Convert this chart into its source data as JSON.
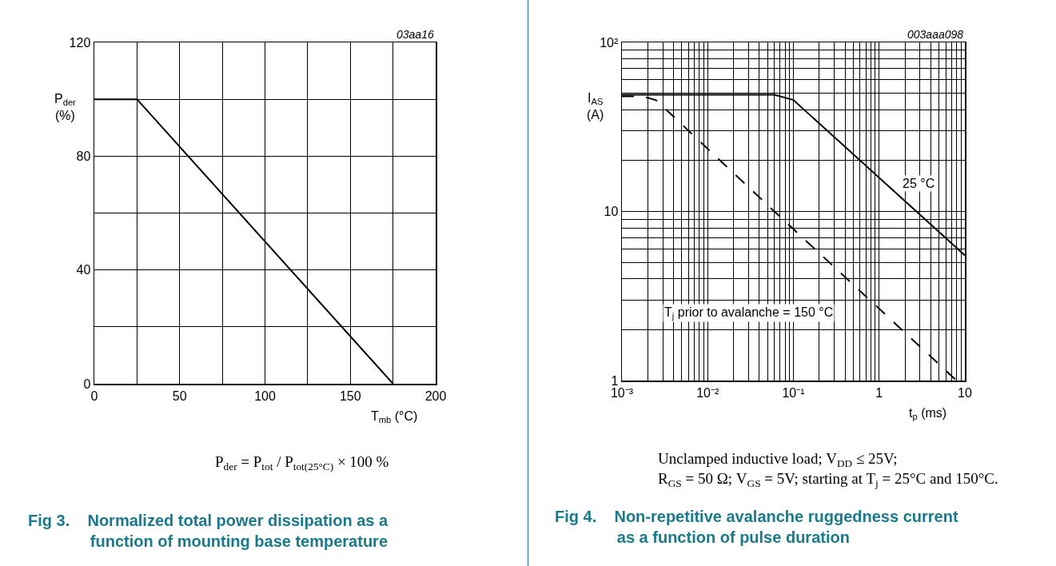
{
  "chart_data": [
    {
      "type": "line",
      "title": "Fig 3.    Normalized total power dissipation as a\n              function of mounting base temperature",
      "xlabel": "T$_{mb}$ (°C)",
      "ylabel": "P$_{der}$\n(%)",
      "x": [
        0,
        25,
        175
      ],
      "series": [
        {
          "color": "#000000",
          "values": [
            100,
            100,
            0
          ],
          "line_style": "solid"
        }
      ],
      "xlim": [
        0,
        200
      ],
      "ylim": [
        0,
        120
      ],
      "xticks": [
        0,
        {
          "value": 25,
          "label": null
        },
        50,
        {
          "value": 75,
          "label": null
        },
        100,
        {
          "value": 125,
          "label": null
        },
        150,
        {
          "value": 175,
          "label": null
        },
        200
      ],
      "yticks": [
        0,
        {
          "value": 20,
          "label": null
        },
        40,
        {
          "value": 60,
          "label": null
        },
        80,
        {
          "value": 100,
          "label": null
        },
        120
      ],
      "grid": true,
      "marker": "none",
      "annotations": [
        "03aa16",
        "P$_{der}$ = P$_{tot}$ / P$_{tot(25°C)}$ × 100 %"
      ]
    },
    {
      "type": "line",
      "title": "Fig 4.    Non-repetitive avalanche ruggedness current\n              as a function of pulse duration",
      "xlabel": "t$_{p}$ (ms)",
      "ylabel": "I$_{AS}$\n(A)",
      "series": [
        {
          "color": "#000000",
          "line_style": "solid",
          "x": [
            0.001,
            0.06,
            0.1,
            10
          ],
          "values": [
            49,
            49,
            45.6,
            5.5
          ]
        },
        {
          "color": "#000000",
          "line_style": "dashed",
          "x": [
            0.001,
            0.0015,
            0.002,
            0.0025,
            0.06,
            8
          ],
          "values": [
            48,
            48,
            47,
            45.5,
            10,
            1
          ]
        }
      ],
      "log": "xy",
      "xlim": [
        0.001,
        10
      ],
      "ylim": [
        1,
        100
      ],
      "xticks": [
        {
          "value": 0.001,
          "label": "10⁻³"
        },
        {
          "value": 0.002,
          "label": null
        },
        {
          "value": 0.003,
          "label": null
        },
        {
          "value": 0.004,
          "label": null
        },
        {
          "value": 0.005,
          "label": null
        },
        {
          "value": 0.006,
          "label": null
        },
        {
          "value": 0.007,
          "label": null
        },
        {
          "value": 0.008,
          "label": null
        },
        {
          "value": 0.009,
          "label": null
        },
        {
          "value": 0.01,
          "label": "10⁻²"
        },
        {
          "value": 0.02,
          "label": null
        },
        {
          "value": 0.03,
          "label": null
        },
        {
          "value": 0.04,
          "label": null
        },
        {
          "value": 0.05,
          "label": null
        },
        {
          "value": 0.06,
          "label": null
        },
        {
          "value": 0.07,
          "label": null
        },
        {
          "value": 0.08,
          "label": null
        },
        {
          "value": 0.09,
          "label": null
        },
        {
          "value": 0.1,
          "label": "10⁻¹"
        },
        {
          "value": 0.2,
          "label": null
        },
        {
          "value": 0.3,
          "label": null
        },
        {
          "value": 0.4,
          "label": null
        },
        {
          "value": 0.5,
          "label": null
        },
        {
          "value": 0.6,
          "label": null
        },
        {
          "value": 0.7,
          "label": null
        },
        {
          "value": 0.8,
          "label": null
        },
        {
          "value": 0.9,
          "label": null
        },
        1,
        {
          "value": 2,
          "label": null
        },
        {
          "value": 3,
          "label": null
        },
        {
          "value": 4,
          "label": null
        },
        {
          "value": 5,
          "label": null
        },
        {
          "value": 6,
          "label": null
        },
        {
          "value": 7,
          "label": null
        },
        {
          "value": 8,
          "label": null
        },
        {
          "value": 9,
          "label": null
        },
        10
      ],
      "yticks": [
        1,
        {
          "value": 2,
          "label": null
        },
        {
          "value": 3,
          "label": null
        },
        {
          "value": 4,
          "label": null
        },
        {
          "value": 5,
          "label": null
        },
        {
          "value": 6,
          "label": null
        },
        {
          "value": 7,
          "label": null
        },
        {
          "value": 8,
          "label": null
        },
        {
          "value": 9,
          "label": null
        },
        10,
        {
          "value": 20,
          "label": null
        },
        {
          "value": 30,
          "label": null
        },
        {
          "value": 40,
          "label": null
        },
        {
          "value": 50,
          "label": null
        },
        {
          "value": 60,
          "label": null
        },
        {
          "value": 70,
          "label": null
        },
        {
          "value": 80,
          "label": null
        },
        {
          "value": 90,
          "label": null
        },
        {
          "value": 100,
          "label": "10²"
        }
      ],
      "grid": true,
      "marker": "none",
      "annotations": [
        {
          "text": "25 °C",
          "x": 2.9,
          "y": 14.6
        },
        "003aaa098",
        "Unclamped inductive load; V$_{DD}$ ≤ 25V;\nR$_{GS}$ = 50 Ω; V$_{GS}$ = 5V; starting at T$_{j}$ = 25°C and 150°C.",
        "T$_{j}$ prior to avalanche = 150 °C"
      ]
    }
  ]
}
